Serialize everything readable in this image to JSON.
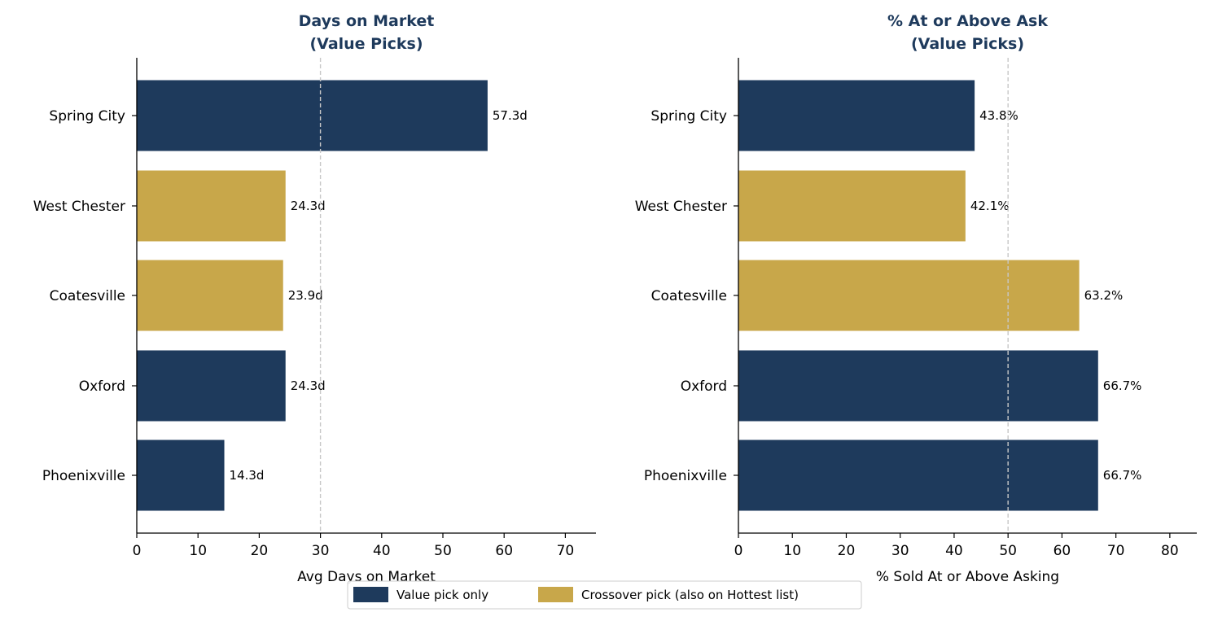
{
  "colors": {
    "value_pick": "#1e3a5c",
    "crossover_pick": "#c8a74a",
    "title": "#1e3a5c",
    "reference_line": "#c8c8c8",
    "axis": "#000000"
  },
  "legend": {
    "placement": "bottom-center",
    "items": [
      {
        "label": "Value pick only",
        "color_key": "value_pick"
      },
      {
        "label": "Crossover pick (also on Hottest list)",
        "color_key": "crossover_pick"
      }
    ]
  },
  "chart_data": [
    {
      "type": "bar",
      "orientation": "horizontal",
      "title_line1": "Days on Market",
      "title_line2": "(Value Picks)",
      "xlabel": "Avg Days on Market",
      "ylabel": "",
      "categories": [
        "Spring City",
        "West Chester",
        "Coatesville",
        "Oxford",
        "Phoenixville"
      ],
      "values": [
        57.3,
        24.3,
        23.9,
        24.3,
        14.3
      ],
      "value_labels": [
        "57.3d",
        "24.3d",
        "23.9d",
        "24.3d",
        "14.3d"
      ],
      "groups": [
        "value_pick",
        "crossover_pick",
        "crossover_pick",
        "value_pick",
        "value_pick"
      ],
      "xlim": [
        0,
        75
      ],
      "xticks": [
        0,
        10,
        20,
        30,
        40,
        50,
        60,
        70
      ],
      "xtick_labels": [
        "0",
        "10",
        "20",
        "30",
        "40",
        "50",
        "60",
        "70"
      ],
      "reference_line": 30,
      "grid": false
    },
    {
      "type": "bar",
      "orientation": "horizontal",
      "title_line1": "% At or Above Ask",
      "title_line2": "(Value Picks)",
      "xlabel": "% Sold At or Above Asking",
      "ylabel": "",
      "categories": [
        "Spring City",
        "West Chester",
        "Coatesville",
        "Oxford",
        "Phoenixville"
      ],
      "values": [
        43.8,
        42.1,
        63.2,
        66.7,
        66.7
      ],
      "value_labels": [
        "43.8%",
        "42.1%",
        "63.2%",
        "66.7%",
        "66.7%"
      ],
      "groups": [
        "value_pick",
        "crossover_pick",
        "crossover_pick",
        "value_pick",
        "value_pick"
      ],
      "xlim": [
        0,
        85
      ],
      "xticks": [
        0,
        10,
        20,
        30,
        40,
        50,
        60,
        70,
        80
      ],
      "xtick_labels": [
        "0",
        "10",
        "20",
        "30",
        "40",
        "50",
        "60",
        "70",
        "80"
      ],
      "reference_line": 50,
      "grid": false
    }
  ]
}
